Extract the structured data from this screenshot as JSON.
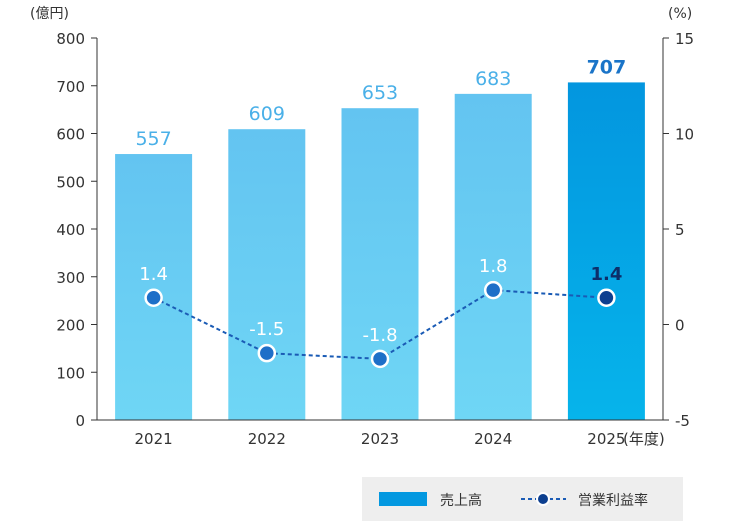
{
  "chart_data": {
    "type": "bar",
    "categories": [
      "2021",
      "2022",
      "2023",
      "2024",
      "2025"
    ],
    "x_unit": "(年度)",
    "series": [
      {
        "name": "売上高",
        "kind": "bar",
        "axis": "left",
        "values": [
          557,
          609,
          653,
          683,
          707
        ],
        "labels": [
          "557",
          "609",
          "653",
          "683",
          "707"
        ],
        "color": "#66c6f1",
        "highlight_color": "#0398e0"
      },
      {
        "name": "営業利益率",
        "kind": "line",
        "axis": "right",
        "style": "dashed",
        "values": [
          1.4,
          -1.5,
          -1.8,
          1.8,
          1.4
        ],
        "labels": [
          "1.4",
          "-1.5",
          "-1.8",
          "1.8",
          "1.4"
        ],
        "color": "#1a5bb5",
        "highlight_color": "#0d3f8f"
      }
    ],
    "y_left": {
      "unit": "(億円)",
      "range": [
        0,
        800
      ],
      "ticks": [
        "0",
        "100",
        "200",
        "300",
        "400",
        "500",
        "600",
        "700",
        "800"
      ]
    },
    "y_right": {
      "unit": "(%)",
      "range": [
        -5,
        15
      ],
      "ticks": [
        "-5",
        "0",
        "5",
        "10",
        "15"
      ]
    },
    "grid": false,
    "legend_position": "bottom-right"
  }
}
